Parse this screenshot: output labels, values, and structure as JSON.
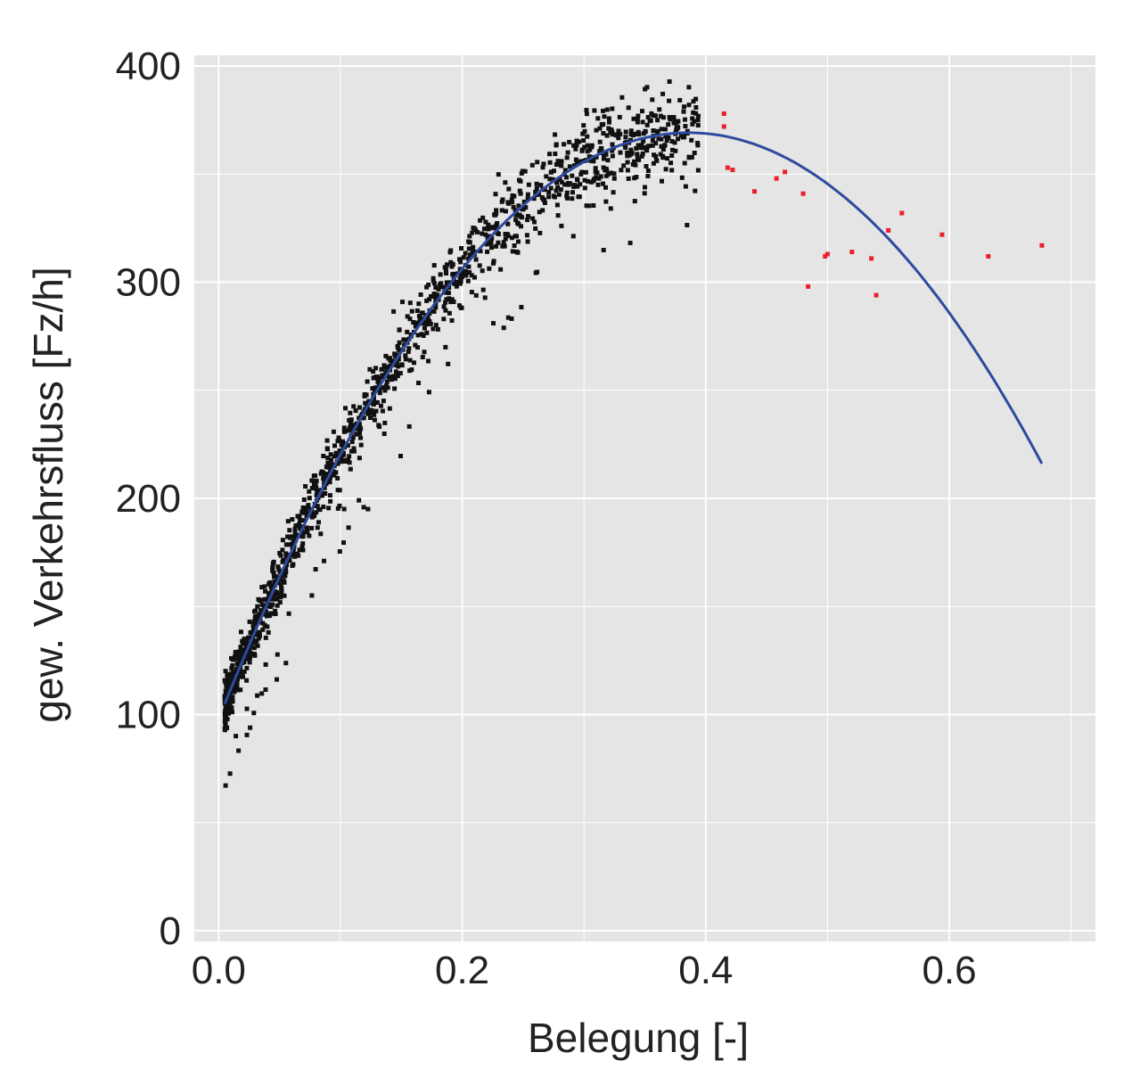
{
  "chart_data": {
    "type": "scatter",
    "title": "",
    "xlabel": "Belegung [-]",
    "ylabel": "gew. Verkehrsfluss [Fz/h]",
    "xlim": [
      -0.02,
      0.72
    ],
    "ylim": [
      -5,
      405
    ],
    "x_ticks": [
      0.0,
      0.2,
      0.4,
      0.6
    ],
    "x_tick_labels": [
      "0.0",
      "0.2",
      "0.4",
      "0.6"
    ],
    "y_ticks": [
      0,
      100,
      200,
      300,
      400
    ],
    "y_tick_labels": [
      "0",
      "100",
      "200",
      "300",
      "400"
    ],
    "grid": true,
    "legend": "none",
    "colors": {
      "panel_background": "#e5e5e5",
      "grid": "#ffffff",
      "free_flow_points": "#111111",
      "congested_points": "#e8212b",
      "fit_curve": "#2e4a9e"
    },
    "series": [
      {
        "kind": "scatter",
        "note_color": "black",
        "generated": {
          "count": 1400,
          "x_range": [
            0.005,
            0.395
          ],
          "curve": "quadratic",
          "spread_y": 14
        }
      },
      {
        "kind": "scatter",
        "note_color": "red",
        "points": [
          [
            0.415,
            378
          ],
          [
            0.415,
            372
          ],
          [
            0.418,
            353
          ],
          [
            0.422,
            352
          ],
          [
            0.44,
            342
          ],
          [
            0.458,
            348
          ],
          [
            0.465,
            351
          ],
          [
            0.48,
            341
          ],
          [
            0.484,
            298
          ],
          [
            0.498,
            312
          ],
          [
            0.5,
            313
          ],
          [
            0.52,
            314
          ],
          [
            0.536,
            311
          ],
          [
            0.54,
            294
          ],
          [
            0.55,
            324
          ],
          [
            0.561,
            332
          ],
          [
            0.594,
            322
          ],
          [
            0.632,
            312
          ],
          [
            0.676,
            317
          ]
        ]
      },
      {
        "kind": "line",
        "fit": {
          "a": 98,
          "b": 1405,
          "c": -1820,
          "x_range": [
            0.005,
            0.676
          ]
        }
      }
    ]
  }
}
